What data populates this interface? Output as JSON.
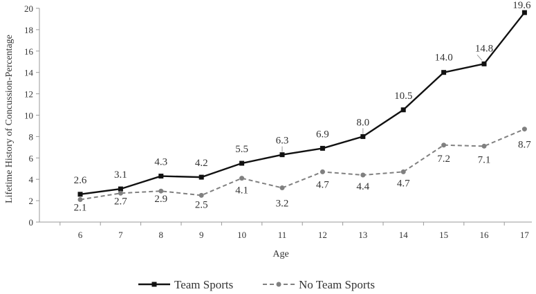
{
  "chart_data": {
    "type": "line",
    "title": "",
    "xlabel": "Age",
    "ylabel": "Lifetime History of Concussion-Percentage",
    "x": [
      6,
      7,
      8,
      9,
      10,
      11,
      12,
      13,
      14,
      15,
      16,
      17
    ],
    "ylim": [
      0,
      20
    ],
    "yticks": [
      0,
      2,
      4,
      6,
      8,
      10,
      12,
      14,
      16,
      18,
      20
    ],
    "grid": false,
    "legend_position": "bottom",
    "series": [
      {
        "name": "Team Sports",
        "values": [
          2.6,
          3.1,
          4.3,
          4.2,
          5.5,
          6.3,
          6.9,
          8.0,
          10.5,
          14.0,
          14.8,
          19.6
        ],
        "labels": [
          "2.6",
          "3.1",
          "4.3",
          "4.2",
          "5.5",
          "6.3",
          "6.9",
          "8.0",
          "10.5",
          "14.0",
          "14.8",
          "19.6"
        ],
        "color": "#111111",
        "line_style": "solid",
        "marker": "square"
      },
      {
        "name": "No Team Sports",
        "values": [
          2.1,
          2.7,
          2.9,
          2.5,
          4.1,
          3.2,
          4.7,
          4.4,
          4.7,
          7.2,
          7.1,
          8.7
        ],
        "labels": [
          "2.1",
          "2.7",
          "2.9",
          "2.5",
          "4.1",
          "3.2",
          "4.7",
          "4.4",
          "4.7",
          "7.2",
          "7.1",
          "8.7"
        ],
        "color": "#808080",
        "line_style": "dashed",
        "marker": "circle"
      }
    ]
  }
}
